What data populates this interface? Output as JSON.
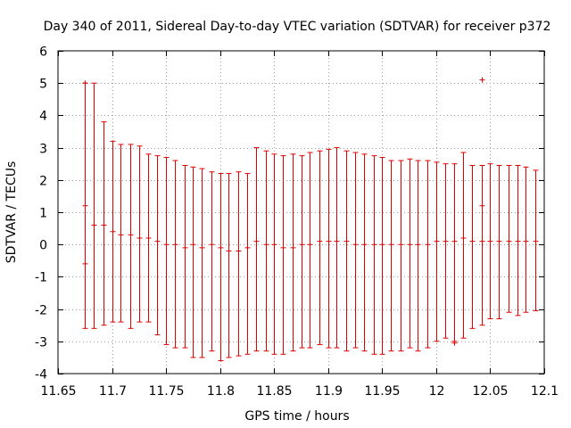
{
  "chart_data": {
    "type": "scatter",
    "title": "Day 340 of 2011, Sidereal Day-to-day VTEC variation (SDTVAR) for receiver p372",
    "xlabel": "GPS time / hours",
    "ylabel": "SDTVAR / TECUs",
    "xlim": [
      11.65,
      12.1
    ],
    "ylim": [
      -4,
      6
    ],
    "xticks": [
      11.65,
      11.7,
      11.75,
      11.8,
      11.85,
      11.9,
      11.95,
      12.0,
      12.05,
      12.1
    ],
    "xtick_labels": [
      "11.65",
      "11.7",
      "11.75",
      "11.8",
      "11.85",
      "11.9",
      "11.95",
      "12",
      "12.05",
      "12.1"
    ],
    "yticks": [
      -4,
      -3,
      -2,
      -1,
      0,
      1,
      2,
      3,
      4,
      5,
      6
    ],
    "ytick_labels": [
      "-4",
      "-3",
      "-2",
      "-1",
      "0",
      "1",
      "2",
      "3",
      "4",
      "5",
      "6"
    ],
    "grid": true,
    "color": "#e00000",
    "series": [
      {
        "name": "SDTVAR",
        "style": "points-with-errorbars",
        "data": [
          {
            "x": 11.675,
            "y": 1.2,
            "ylow": -2.6,
            "yhigh": 5.0
          },
          {
            "x": 11.683,
            "y": 0.6,
            "ylow": -2.6,
            "yhigh": 5.0
          },
          {
            "x": 11.692,
            "y": 0.6,
            "ylow": -2.5,
            "yhigh": 3.8
          },
          {
            "x": 11.7,
            "y": 0.4,
            "ylow": -2.4,
            "yhigh": 3.2
          },
          {
            "x": 11.708,
            "y": 0.3,
            "ylow": -2.4,
            "yhigh": 3.1
          },
          {
            "x": 11.717,
            "y": 0.3,
            "ylow": -2.6,
            "yhigh": 3.1
          },
          {
            "x": 11.725,
            "y": 0.2,
            "ylow": -2.4,
            "yhigh": 3.05
          },
          {
            "x": 11.733,
            "y": 0.2,
            "ylow": -2.4,
            "yhigh": 2.8
          },
          {
            "x": 11.742,
            "y": 0.1,
            "ylow": -2.8,
            "yhigh": 2.75
          },
          {
            "x": 11.75,
            "y": 0.0,
            "ylow": -3.1,
            "yhigh": 2.7
          },
          {
            "x": 11.758,
            "y": 0.0,
            "ylow": -3.2,
            "yhigh": 2.6
          },
          {
            "x": 11.767,
            "y": -0.1,
            "ylow": -3.2,
            "yhigh": 2.45
          },
          {
            "x": 11.775,
            "y": 0.0,
            "ylow": -3.5,
            "yhigh": 2.4
          },
          {
            "x": 11.783,
            "y": -0.1,
            "ylow": -3.5,
            "yhigh": 2.35
          },
          {
            "x": 11.792,
            "y": 0.0,
            "ylow": -3.3,
            "yhigh": 2.25
          },
          {
            "x": 11.8,
            "y": -0.1,
            "ylow": -3.6,
            "yhigh": 2.2
          },
          {
            "x": 11.808,
            "y": -0.2,
            "ylow": -3.5,
            "yhigh": 2.2
          },
          {
            "x": 11.817,
            "y": -0.2,
            "ylow": -3.45,
            "yhigh": 2.25
          },
          {
            "x": 11.825,
            "y": -0.1,
            "ylow": -3.4,
            "yhigh": 2.2
          },
          {
            "x": 11.833,
            "y": 0.1,
            "ylow": -3.3,
            "yhigh": 3.0
          },
          {
            "x": 11.842,
            "y": 0.0,
            "ylow": -3.3,
            "yhigh": 2.9
          },
          {
            "x": 11.85,
            "y": 0.0,
            "ylow": -3.4,
            "yhigh": 2.8
          },
          {
            "x": 11.858,
            "y": -0.1,
            "ylow": -3.4,
            "yhigh": 2.75
          },
          {
            "x": 11.867,
            "y": -0.1,
            "ylow": -3.3,
            "yhigh": 2.8
          },
          {
            "x": 11.875,
            "y": 0.0,
            "ylow": -3.2,
            "yhigh": 2.75
          },
          {
            "x": 11.883,
            "y": 0.0,
            "ylow": -3.2,
            "yhigh": 2.85
          },
          {
            "x": 11.892,
            "y": 0.1,
            "ylow": -3.1,
            "yhigh": 2.9
          },
          {
            "x": 11.9,
            "y": 0.1,
            "ylow": -3.2,
            "yhigh": 2.95
          },
          {
            "x": 11.908,
            "y": 0.1,
            "ylow": -3.2,
            "yhigh": 3.0
          },
          {
            "x": 11.917,
            "y": 0.1,
            "ylow": -3.3,
            "yhigh": 2.9
          },
          {
            "x": 11.925,
            "y": 0.0,
            "ylow": -3.2,
            "yhigh": 2.85
          },
          {
            "x": 11.933,
            "y": 0.0,
            "ylow": -3.3,
            "yhigh": 2.8
          },
          {
            "x": 11.942,
            "y": 0.0,
            "ylow": -3.4,
            "yhigh": 2.75
          },
          {
            "x": 11.95,
            "y": 0.0,
            "ylow": -3.4,
            "yhigh": 2.7
          },
          {
            "x": 11.958,
            "y": 0.0,
            "ylow": -3.3,
            "yhigh": 2.6
          },
          {
            "x": 11.967,
            "y": 0.0,
            "ylow": -3.3,
            "yhigh": 2.6
          },
          {
            "x": 11.975,
            "y": 0.0,
            "ylow": -3.2,
            "yhigh": 2.65
          },
          {
            "x": 11.983,
            "y": 0.0,
            "ylow": -3.3,
            "yhigh": 2.6
          },
          {
            "x": 11.992,
            "y": 0.0,
            "ylow": -3.2,
            "yhigh": 2.6
          },
          {
            "x": 12.0,
            "y": 0.1,
            "ylow": -3.0,
            "yhigh": 2.55
          },
          {
            "x": 12.008,
            "y": 0.1,
            "ylow": -2.9,
            "yhigh": 2.5
          },
          {
            "x": 12.017,
            "y": 0.1,
            "ylow": -3.0,
            "yhigh": 2.5
          },
          {
            "x": 12.025,
            "y": 0.2,
            "ylow": -2.9,
            "yhigh": 2.85
          },
          {
            "x": 12.033,
            "y": 0.1,
            "ylow": -2.6,
            "yhigh": 2.45
          },
          {
            "x": 12.042,
            "y": 0.1,
            "ylow": -2.5,
            "yhigh": 2.45
          },
          {
            "x": 12.05,
            "y": 0.1,
            "ylow": -2.3,
            "yhigh": 2.5
          },
          {
            "x": 12.058,
            "y": 0.1,
            "ylow": -2.3,
            "yhigh": 2.45
          },
          {
            "x": 12.067,
            "y": 0.1,
            "ylow": -2.1,
            "yhigh": 2.45
          },
          {
            "x": 12.075,
            "y": 0.1,
            "ylow": -2.2,
            "yhigh": 2.45
          },
          {
            "x": 12.083,
            "y": 0.1,
            "ylow": -2.1,
            "yhigh": 2.4
          },
          {
            "x": 12.092,
            "y": 0.1,
            "ylow": -2.05,
            "yhigh": 2.3
          }
        ]
      },
      {
        "name": "outliers",
        "style": "points",
        "data": [
          {
            "x": 11.675,
            "y": 5.0
          },
          {
            "x": 11.675,
            "y": -0.6
          },
          {
            "x": 12.017,
            "y": -3.05
          },
          {
            "x": 12.042,
            "y": 5.1
          },
          {
            "x": 12.042,
            "y": 1.2
          }
        ]
      }
    ]
  }
}
